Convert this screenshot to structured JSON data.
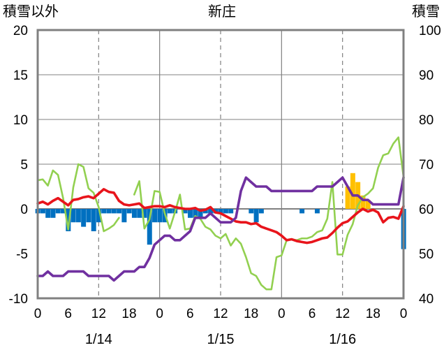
{
  "chart_data": {
    "type": "bar+line",
    "title": "新庄",
    "left_axis": {
      "label": "積雪以外",
      "min": -10,
      "max": 20,
      "ticks": [
        -10,
        -5,
        0,
        5,
        10,
        15,
        20
      ]
    },
    "right_axis": {
      "label": "積雪",
      "min": 40,
      "max": 100,
      "ticks": [
        40,
        50,
        60,
        70,
        80,
        90,
        100
      ]
    },
    "x_axis": {
      "hour_min": 0,
      "hour_max": 72,
      "tick_labels": [
        "0",
        "6",
        "12",
        "18",
        "0",
        "6",
        "12",
        "18",
        "0",
        "6",
        "12",
        "18",
        "0"
      ],
      "dates": [
        "1/14",
        "1/15",
        "1/16"
      ]
    },
    "grid": {
      "major_at_hours": [
        24,
        48
      ],
      "minor_at_hours": [
        12,
        36,
        60
      ],
      "horizontal_at": [
        5,
        10,
        15
      ]
    },
    "colors": {
      "red": "#e8141b",
      "purple": "#7030a0",
      "green": "#92d050",
      "blue": "#0070c0",
      "orange": "#ffc000",
      "frame": "#808080",
      "grid": "#808080"
    },
    "series": [
      {
        "color_key": "blue",
        "kind": "bar",
        "axis": "left",
        "values": [
          -0.5,
          -0.5,
          -1,
          -1,
          -0.5,
          -0.5,
          -2.5,
          -1.5,
          -1.5,
          -2,
          -1.5,
          -2.5,
          -1.5,
          -0.5,
          -0.5,
          -0.5,
          -0.5,
          -1.5,
          -0.5,
          -1,
          -1,
          -1,
          -4,
          -1.5,
          -1.5,
          -1.5,
          -0.5,
          -0.5,
          0,
          -0.5,
          -1,
          -1,
          -1,
          -0.5,
          -0.5,
          -0.5,
          -0.5,
          -0.5,
          -0.5,
          0,
          0,
          0,
          -0.5,
          -1.5,
          -0.5,
          0,
          0,
          0,
          0,
          0,
          0,
          0,
          -0.5,
          0,
          0,
          -0.5,
          0,
          0,
          0,
          0,
          0,
          0,
          0,
          0,
          0,
          0,
          0,
          0,
          0,
          0,
          0,
          0,
          -4.5
        ]
      },
      {
        "color_key": "orange",
        "kind": "bar",
        "axis": "right",
        "values": [
          0,
          0,
          0,
          0,
          0,
          0,
          0,
          0,
          0,
          0,
          0,
          0,
          0,
          0,
          0,
          0,
          0,
          0,
          0,
          0,
          0,
          0,
          0,
          0,
          0,
          0,
          0,
          0,
          0,
          0,
          0,
          0,
          0,
          0,
          0,
          0,
          0,
          0,
          0,
          0,
          0,
          0,
          0,
          0,
          0,
          0,
          0,
          0,
          0,
          0,
          0,
          0,
          0,
          0,
          0,
          0,
          0,
          0,
          0,
          0,
          0,
          65,
          68,
          66,
          63,
          62,
          0,
          0,
          0,
          0,
          0,
          0,
          0
        ]
      },
      {
        "color_key": "red",
        "kind": "line",
        "axis": "left",
        "values": [
          0.6,
          0.8,
          0.5,
          0.9,
          1.2,
          0.8,
          0.4,
          1.0,
          1.1,
          1.3,
          1.4,
          1.2,
          1.7,
          2.2,
          1.9,
          1.8,
          0.9,
          0.5,
          0.4,
          0.5,
          0.6,
          0.1,
          0.2,
          0.3,
          0.3,
          0.2,
          0.4,
          0.2,
          0.1,
          0.0,
          0.0,
          0.1,
          -0.2,
          -0.1,
          0.2,
          -0.4,
          -0.5,
          -0.8,
          -1.1,
          -1.4,
          -1.5,
          -1.5,
          -1.7,
          -1.6,
          -2.0,
          -2.2,
          -2.4,
          -2.6,
          -3.0,
          -3.5,
          -3.4,
          -3.6,
          -3.7,
          -3.8,
          -3.7,
          -3.5,
          -3.3,
          -3.2,
          -2.7,
          -2.1,
          -1.6,
          -1.4,
          -0.9,
          -0.4,
          0.0,
          -0.3,
          -0.1,
          -0.4,
          -1.5,
          -1.0,
          -0.9,
          -1.1,
          0.3
        ]
      },
      {
        "color_key": "purple",
        "kind": "line",
        "axis": "right",
        "values": [
          45,
          45,
          46,
          45,
          45,
          45,
          46,
          46,
          46,
          46,
          45,
          45,
          45,
          45,
          45,
          44,
          45,
          46,
          46,
          46,
          47,
          47,
          49,
          52,
          53,
          54,
          54,
          53,
          53,
          54,
          55,
          58,
          58,
          58,
          59,
          58,
          57,
          57,
          57,
          58,
          64,
          67,
          66,
          65,
          65,
          65,
          64,
          64,
          64,
          64,
          64,
          64,
          64,
          64,
          64,
          65,
          65,
          65,
          65,
          66,
          67,
          65,
          63,
          63,
          62,
          62,
          61,
          61,
          61,
          61,
          61,
          61,
          67
        ]
      },
      {
        "color_key": "green",
        "kind": "line",
        "axis": "left",
        "values": [
          3.2,
          3.3,
          2.6,
          4.3,
          3.8,
          1.2,
          -2.3,
          2.4,
          5.0,
          4.7,
          2.3,
          1.8,
          0.2,
          -2.5,
          -2.2,
          -1.8,
          -1.0,
          null,
          null,
          1.6,
          3.1,
          -2.2,
          -1.2,
          2.0,
          1.9,
          -0.5,
          -2.2,
          -0.4,
          1.6,
          -2.3,
          -2.2,
          -0.8,
          -1.1,
          -2.0,
          -2.3,
          -3.0,
          -3.3,
          -2.8,
          -4.1,
          -3.3,
          -3.9,
          -5.4,
          -7.2,
          -7.5,
          -8.5,
          -9.0,
          -9.0,
          -5.4,
          -5.2,
          -3.5,
          -3.4,
          -3.5,
          -3.3,
          -3.3,
          -3.1,
          -2.6,
          -2.4,
          -1.1,
          3.0,
          -5.1,
          -5.1,
          -2.9,
          -1.7,
          0.4,
          1.3,
          1.7,
          2.3,
          4.6,
          6.0,
          6.2,
          7.3,
          8.0,
          3.6
        ]
      }
    ]
  }
}
